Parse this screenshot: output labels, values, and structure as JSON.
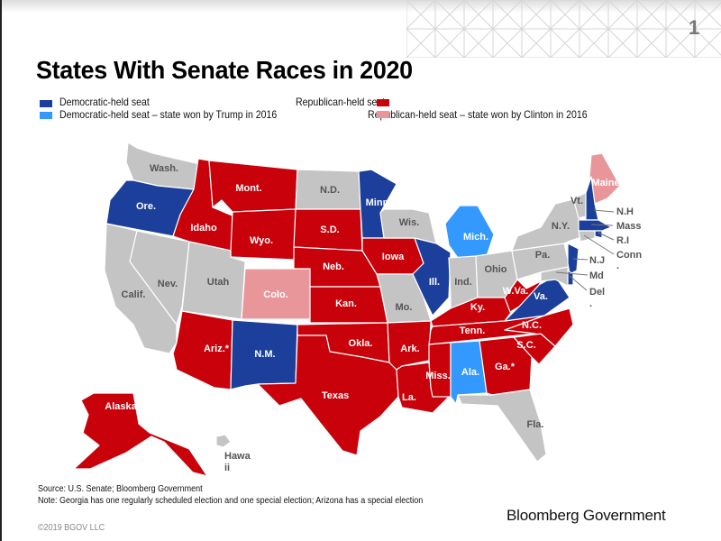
{
  "page_number": "1",
  "title": "States With Senate Races in 2020",
  "colors": {
    "dem": "#1b3f9a",
    "dem_trump": "#3399ff",
    "rep": "#c8010a",
    "rep_clinton": "#e8969a",
    "none": "#c4c4c4"
  },
  "legend": [
    {
      "key": "dem",
      "label": "Democratic-held seat"
    },
    {
      "key": "rep",
      "label": "Republican-held seat"
    },
    {
      "key": "dem_trump",
      "label": "Democratic-held seat – state won by Trump in 2016"
    },
    {
      "key": "rep_clinton",
      "label": "Republican-held seat – state won by Clinton in 2016"
    }
  ],
  "states": [
    {
      "label": "Wash.",
      "category": "none"
    },
    {
      "label": "Ore.",
      "category": "dem"
    },
    {
      "label": "Calif.",
      "category": "none"
    },
    {
      "label": "Nev.",
      "category": "none"
    },
    {
      "label": "Idaho",
      "category": "rep"
    },
    {
      "label": "Mont.",
      "category": "rep"
    },
    {
      "label": "Wyo.",
      "category": "rep"
    },
    {
      "label": "Utah",
      "category": "none"
    },
    {
      "label": "Colo.",
      "category": "rep_clinton"
    },
    {
      "label": "Ariz.*",
      "category": "rep"
    },
    {
      "label": "N.M.",
      "category": "dem"
    },
    {
      "label": "N.D.",
      "category": "none"
    },
    {
      "label": "S.D.",
      "category": "rep"
    },
    {
      "label": "Neb.",
      "category": "rep"
    },
    {
      "label": "Kan.",
      "category": "rep"
    },
    {
      "label": "Okla.",
      "category": "rep"
    },
    {
      "label": "Texas",
      "category": "rep"
    },
    {
      "label": "Minn.",
      "category": "dem"
    },
    {
      "label": "Iowa",
      "category": "rep"
    },
    {
      "label": "Mo.",
      "category": "none"
    },
    {
      "label": "Ark.",
      "category": "rep"
    },
    {
      "label": "La.",
      "category": "rep"
    },
    {
      "label": "Wis.",
      "category": "none"
    },
    {
      "label": "Ill.",
      "category": "dem"
    },
    {
      "label": "Mich.",
      "category": "dem_trump"
    },
    {
      "label": "Ind.",
      "category": "none"
    },
    {
      "label": "Ohio",
      "category": "none"
    },
    {
      "label": "Ky.",
      "category": "rep"
    },
    {
      "label": "Tenn.",
      "category": "rep"
    },
    {
      "label": "Miss.",
      "category": "rep"
    },
    {
      "label": "Ala.",
      "category": "dem_trump"
    },
    {
      "label": "Ga.*",
      "category": "rep"
    },
    {
      "label": "Fla.",
      "category": "none"
    },
    {
      "label": "S.C.",
      "category": "rep"
    },
    {
      "label": "N.C.",
      "category": "rep"
    },
    {
      "label": "Va.",
      "category": "dem"
    },
    {
      "label": "W.Va.",
      "category": "rep"
    },
    {
      "label": "Pa.",
      "category": "none"
    },
    {
      "label": "N.Y.",
      "category": "none"
    },
    {
      "label": "Vt.",
      "category": "none"
    },
    {
      "label": "Maine",
      "category": "rep_clinton"
    },
    {
      "label": "N.H",
      "category": "dem"
    },
    {
      "label": "Mass",
      "category": "dem"
    },
    {
      "label": "R.I",
      "category": "dem"
    },
    {
      "label": "Conn",
      "category": "none"
    },
    {
      "label": "N.J",
      "category": "dem"
    },
    {
      "label": "Md",
      "category": "none"
    },
    {
      "label": "Del",
      "category": "dem"
    },
    {
      "label": "Alaska",
      "category": "rep"
    },
    {
      "label": "Hawaii",
      "category": "none"
    }
  ],
  "callout_labels": {
    "nh": "N.H",
    "mass": "Mass",
    "ri": "R.I",
    "conn": "Conn",
    "conn_dot": ".",
    "nj": "N.J",
    "md": "Md",
    "del": "Del",
    "del_dot": "."
  },
  "hawaii_label": [
    "Hawa",
    "ii"
  ],
  "footer": {
    "source": "Source: U.S. Senate; Bloomberg Government",
    "note": "Note: Georgia has one regularly scheduled election and one special election; Arizona has a special election",
    "copyright": "©2019 BGOV LLC",
    "brand": "Bloomberg Government"
  }
}
